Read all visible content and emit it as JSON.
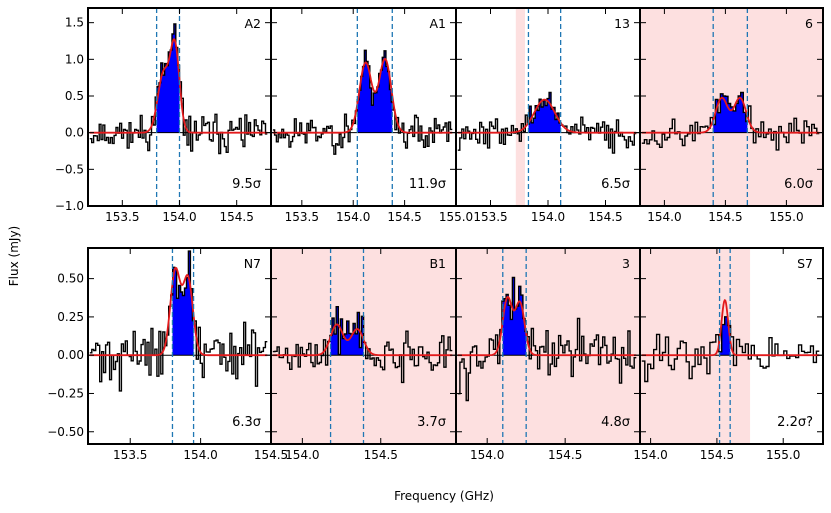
{
  "chart_data": {
    "type": "line",
    "xlabel": "Frequency (GHz)",
    "ylabel": "Flux (mJy)",
    "colors": {
      "spectrum": "#000000",
      "fill": "#0000ff",
      "fit": "#e31a1c",
      "window": "#1f77b4",
      "shade": "#fde0e0"
    },
    "rows": [
      {
        "ylim": [
          -1.0,
          1.7
        ],
        "yticks": [
          -1.0,
          -0.5,
          0.0,
          0.5,
          1.0,
          1.5
        ],
        "ytick_labels": [
          "−1.0",
          "−0.5",
          "0.0",
          "0.5",
          "1.0",
          "1.5"
        ]
      },
      {
        "ylim": [
          -0.58,
          0.7
        ],
        "yticks": [
          -0.5,
          -0.25,
          0.0,
          0.25,
          0.5
        ],
        "ytick_labels": [
          "−0.50",
          "−0.25",
          "0.00",
          "0.25",
          "0.50"
        ]
      }
    ],
    "panels": [
      {
        "label": "A2",
        "sigma": "9.5σ",
        "xlim": [
          153.2,
          154.8
        ],
        "xticks": [
          153.5,
          154.0,
          154.5
        ],
        "xtick_labels": [
          "153.5",
          "154.0",
          "154.5"
        ],
        "window": [
          153.8,
          154.0
        ],
        "shade": null,
        "peaks": [
          {
            "center": 153.86,
            "amp": 0.8,
            "width": 0.05
          },
          {
            "center": 153.96,
            "amp": 1.15,
            "width": 0.04
          }
        ],
        "noise": 0.22,
        "seed": 11,
        "n": 95
      },
      {
        "label": "A1",
        "sigma": "11.9σ",
        "xlim": [
          153.2,
          155.0
        ],
        "xticks": [
          153.5,
          154.0,
          154.5,
          155.0
        ],
        "xtick_labels": [
          "153.5",
          "154.0",
          "154.5",
          "155.0"
        ],
        "window": [
          154.04,
          154.38
        ],
        "shade": null,
        "peaks": [
          {
            "center": 154.12,
            "amp": 0.95,
            "width": 0.06
          },
          {
            "center": 154.31,
            "amp": 1.0,
            "width": 0.06
          }
        ],
        "noise": 0.22,
        "seed": 23,
        "n": 100
      },
      {
        "label": "13",
        "sigma": "6.5σ",
        "xlim": [
          153.2,
          154.8
        ],
        "xticks": [
          153.5,
          154.0,
          154.5
        ],
        "xtick_labels": [
          "153.5",
          "154.0",
          "154.5"
        ],
        "window": [
          153.83,
          154.11
        ],
        "shade": [
          153.72,
          153.8
        ],
        "peaks": [
          {
            "center": 153.97,
            "amp": 0.45,
            "width": 0.09
          }
        ],
        "noise": 0.2,
        "seed": 37,
        "n": 90
      },
      {
        "label": "6",
        "sigma": "6.0σ",
        "xlim": [
          153.8,
          155.3
        ],
        "xticks": [
          154.0,
          154.5,
          155.0
        ],
        "xtick_labels": [
          "154.0",
          "154.5",
          "155.0"
        ],
        "window": [
          154.4,
          154.68
        ],
        "shade": [
          153.8,
          155.3
        ],
        "peaks": [
          {
            "center": 154.47,
            "amp": 0.47,
            "width": 0.05
          },
          {
            "center": 154.62,
            "amp": 0.47,
            "width": 0.05
          }
        ],
        "noise": 0.2,
        "seed": 53,
        "n": 70
      },
      {
        "label": "N7",
        "sigma": "6.3σ",
        "xlim": [
          153.2,
          154.5
        ],
        "xticks": [
          153.5,
          154.0,
          154.5
        ],
        "xtick_labels": [
          "153.5",
          "154.0",
          "154.5"
        ],
        "window": [
          153.8,
          153.95
        ],
        "shade": null,
        "peaks": [
          {
            "center": 153.82,
            "amp": 0.55,
            "width": 0.035
          },
          {
            "center": 153.91,
            "amp": 0.5,
            "width": 0.035
          }
        ],
        "noise": 0.17,
        "seed": 71,
        "n": 90
      },
      {
        "label": "B1",
        "sigma": "3.7σ",
        "xlim": [
          153.8,
          154.98
        ],
        "xticks": [
          154.0,
          154.5
        ],
        "xtick_labels": [
          "154.0",
          "154.5"
        ],
        "window": [
          154.18,
          154.39
        ],
        "shade": [
          153.8,
          154.98
        ],
        "peaks": [
          {
            "center": 154.22,
            "amp": 0.2,
            "width": 0.04
          },
          {
            "center": 154.35,
            "amp": 0.17,
            "width": 0.04
          }
        ],
        "noise": 0.15,
        "seed": 89,
        "n": 85
      },
      {
        "label": "3",
        "sigma": "4.8σ",
        "xlim": [
          153.8,
          154.98
        ],
        "xticks": [
          154.0,
          154.5
        ],
        "xtick_labels": [
          "154.0",
          "154.5"
        ],
        "window": [
          154.1,
          154.25
        ],
        "shade": [
          153.8,
          154.98
        ],
        "peaks": [
          {
            "center": 154.13,
            "amp": 0.37,
            "width": 0.03
          },
          {
            "center": 154.21,
            "amp": 0.34,
            "width": 0.03
          }
        ],
        "noise": 0.17,
        "seed": 97,
        "n": 85
      },
      {
        "label": "S7",
        "sigma": "2.2σ?",
        "xlim": [
          153.92,
          155.3
        ],
        "xticks": [
          154.0,
          154.5,
          155.0
        ],
        "xtick_labels": [
          "154.0",
          "154.5",
          "155.0"
        ],
        "window": [
          154.52,
          154.6
        ],
        "shade": [
          153.92,
          154.75
        ],
        "peaks": [
          {
            "center": 154.56,
            "amp": 0.36,
            "width": 0.025
          }
        ],
        "noise": 0.15,
        "seed": 113,
        "n": 60
      }
    ]
  }
}
